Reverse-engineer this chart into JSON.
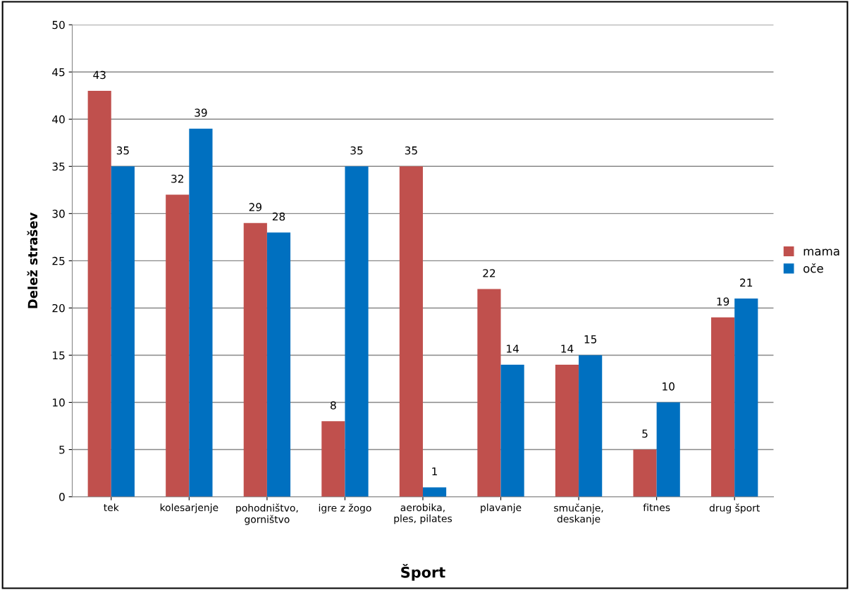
{
  "chart_data": {
    "type": "bar",
    "xlabel": "Šport",
    "ylabel": "Delež strašev",
    "categories": [
      "tek",
      "kolesarjenje",
      "pohodništvo,\ngorništvo",
      "igre z žogo",
      "aerobika,\nples, pilates",
      "plavanje",
      "smučanje,\ndeskanje",
      "fitnes",
      "drug šport"
    ],
    "series": [
      {
        "name": "mama",
        "color": "#c0504d",
        "values": [
          43,
          32,
          29,
          8,
          35,
          22,
          14,
          5,
          19
        ]
      },
      {
        "name": "oče",
        "color": "#0070c0",
        "values": [
          35,
          39,
          28,
          35,
          1,
          14,
          15,
          10,
          21
        ]
      }
    ],
    "ylim": [
      0,
      50
    ],
    "yticks": [
      0,
      5,
      10,
      15,
      20,
      25,
      30,
      35,
      40,
      45,
      50
    ],
    "grid": "y",
    "legend": "right",
    "data_labels": true
  }
}
